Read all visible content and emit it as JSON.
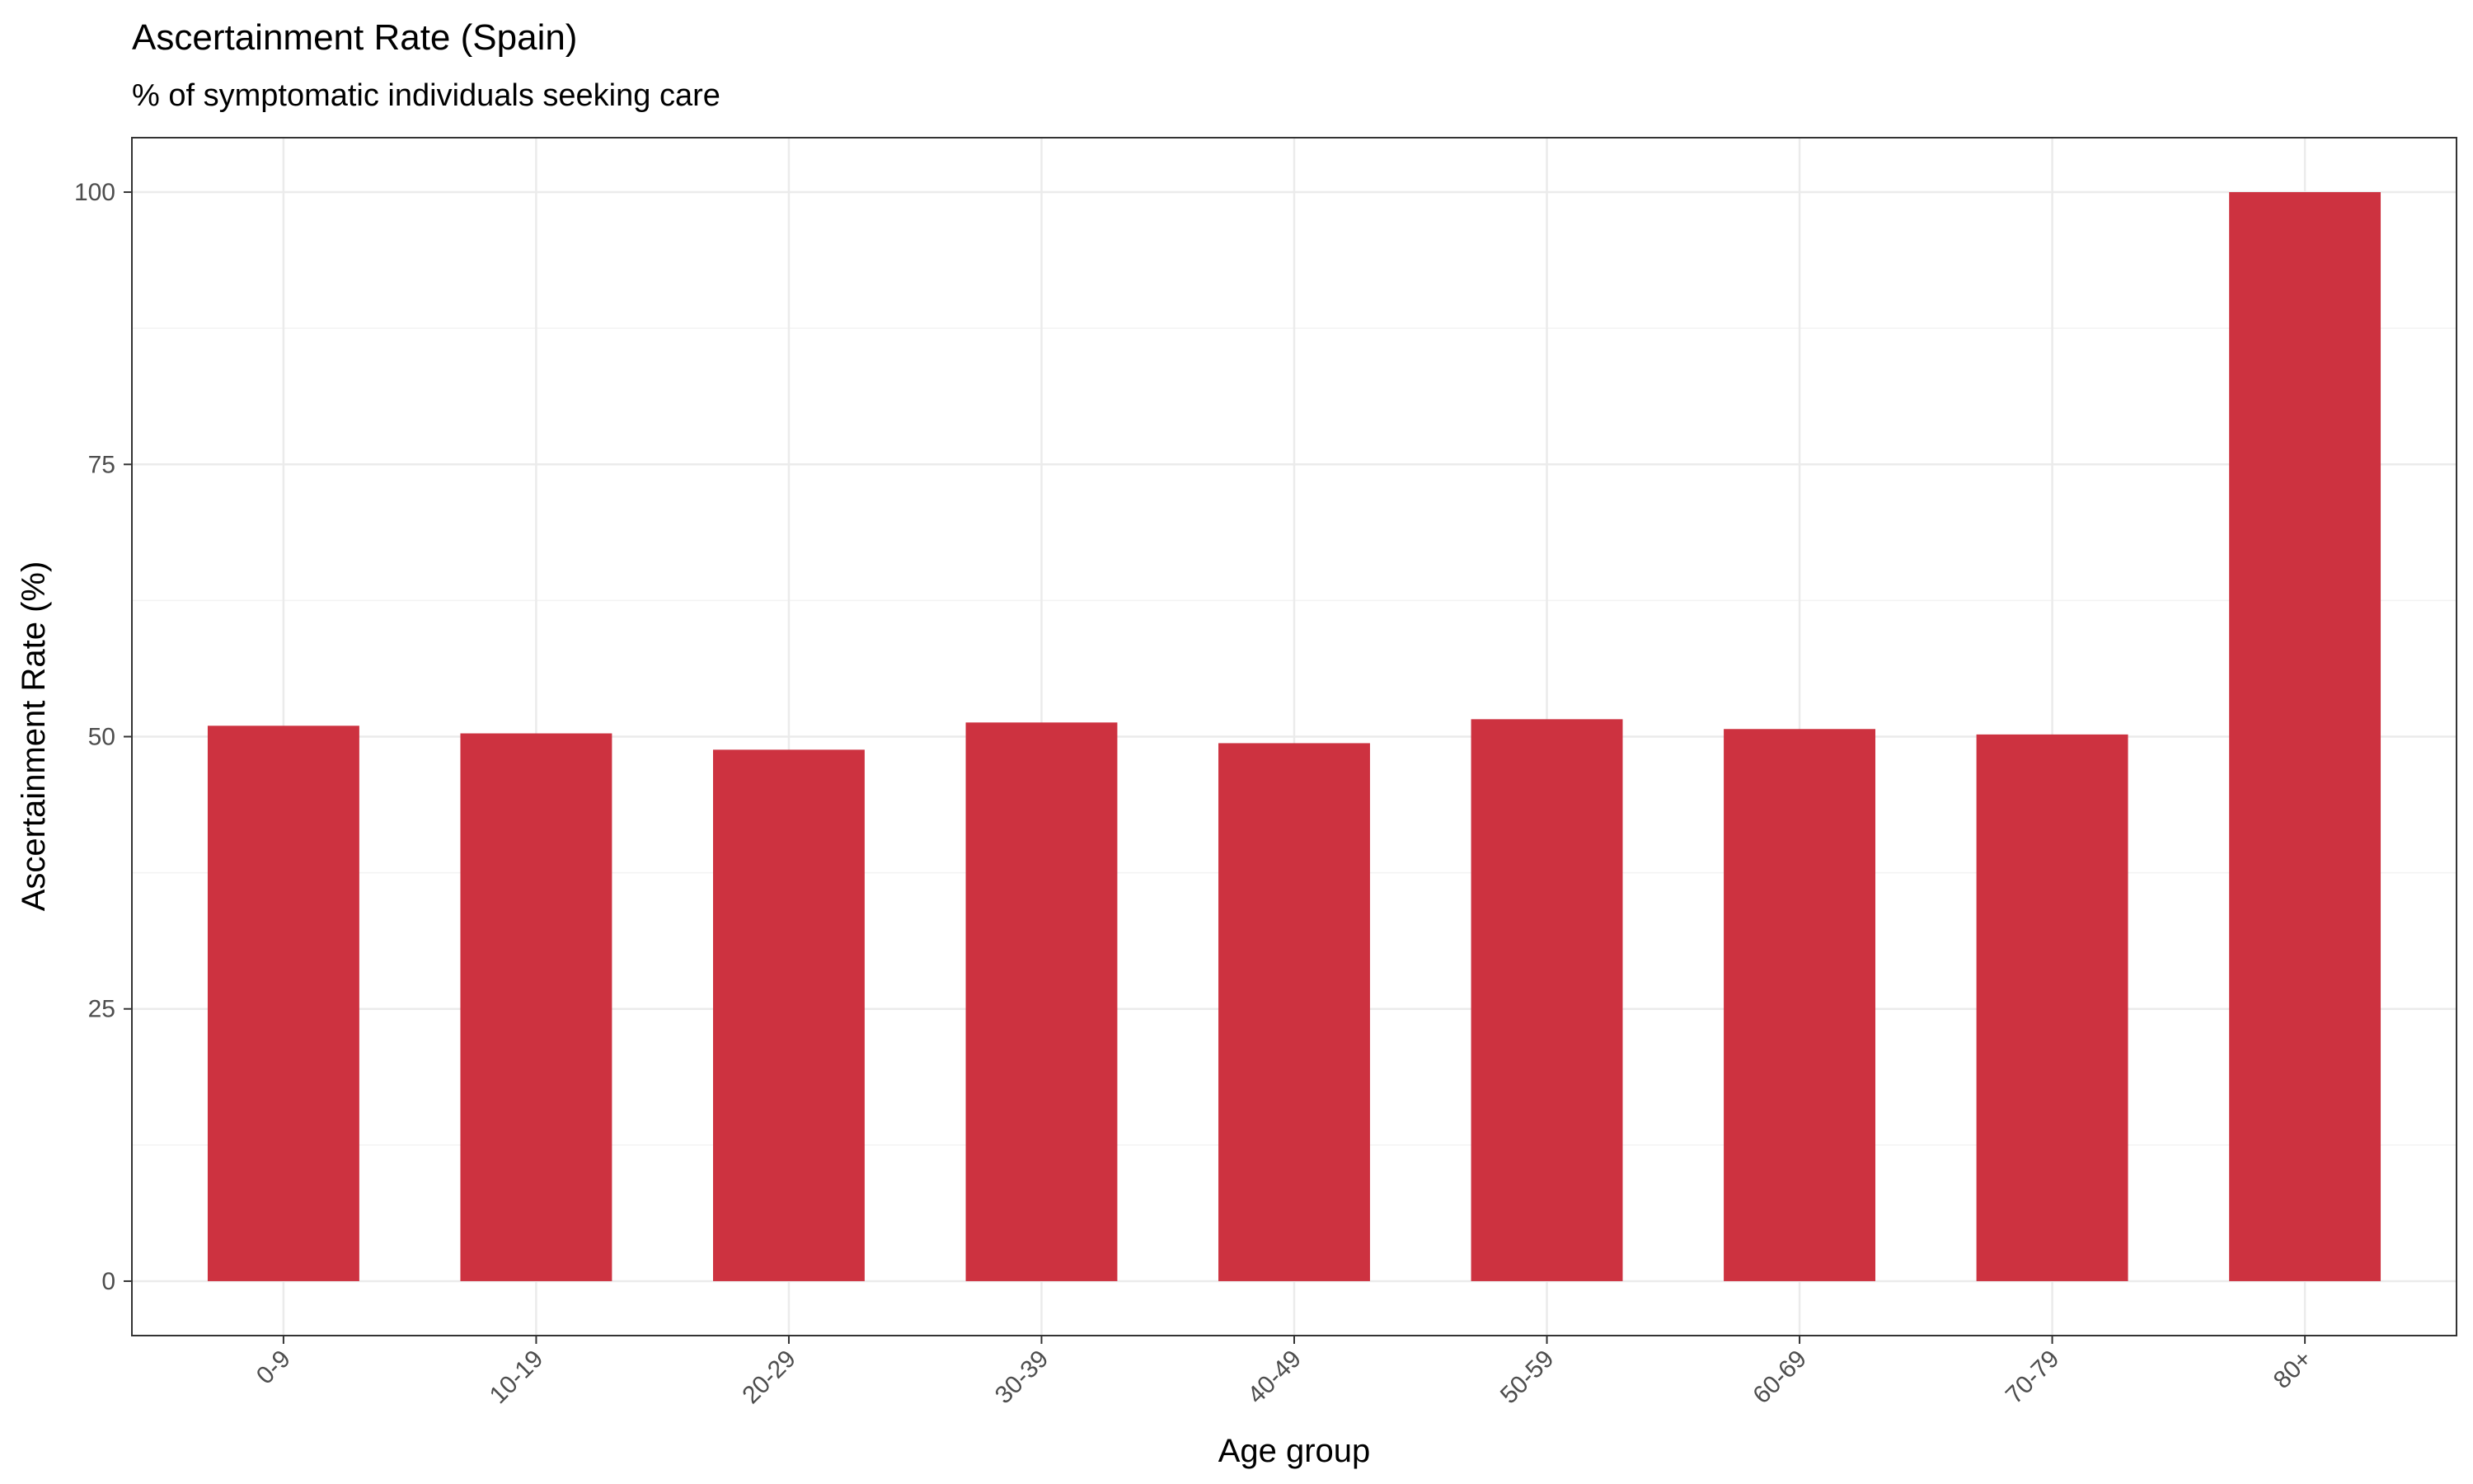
{
  "chart_data": {
    "type": "bar",
    "title": "Ascertainment Rate (Spain)",
    "subtitle": "% of symptomatic individuals seeking care",
    "xlabel": "Age group",
    "ylabel": "Ascertainment Rate (%)",
    "categories": [
      "0-9",
      "10-19",
      "20-29",
      "30-39",
      "40-49",
      "50-59",
      "60-69",
      "70-79",
      "80+"
    ],
    "values": [
      51.0,
      50.3,
      48.8,
      51.3,
      49.4,
      51.6,
      50.7,
      50.2,
      100.0
    ],
    "ylim": [
      -5,
      105
    ],
    "yticks": [
      0,
      25,
      50,
      75,
      100
    ],
    "grid": true,
    "legend": "none",
    "bar_color": "#CD3240"
  }
}
